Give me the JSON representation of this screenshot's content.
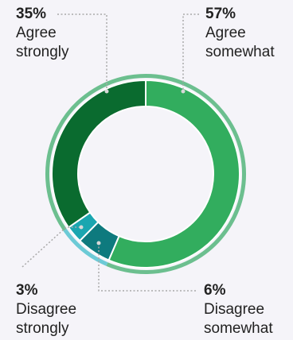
{
  "chart_data": {
    "type": "pie",
    "title": "",
    "categories": [
      "Agree strongly",
      "Agree somewhat",
      "Disagree strongly",
      "Disagree somewhat"
    ],
    "values": [
      35,
      57,
      3,
      6
    ],
    "labels": [
      {
        "value": "35%",
        "line1": "Agree",
        "line2": "strongly"
      },
      {
        "value": "57%",
        "line1": "Agree",
        "line2": "somewhat"
      },
      {
        "value": "3%",
        "line1": "Disagree",
        "line2": "strongly"
      },
      {
        "value": "6%",
        "line1": "Disagree",
        "line2": "somewhat"
      }
    ],
    "colors": {
      "agree_strongly": "#0a6b2f",
      "agree_somewhat": "#32ad5e",
      "disagree_strongly": "#1aa6b0",
      "disagree_somewhat": "#0e7a7e",
      "outer_agree": "#6cbf8f",
      "outer_disagree": "#6ccad6",
      "leader": "#a9a9a9"
    }
  }
}
